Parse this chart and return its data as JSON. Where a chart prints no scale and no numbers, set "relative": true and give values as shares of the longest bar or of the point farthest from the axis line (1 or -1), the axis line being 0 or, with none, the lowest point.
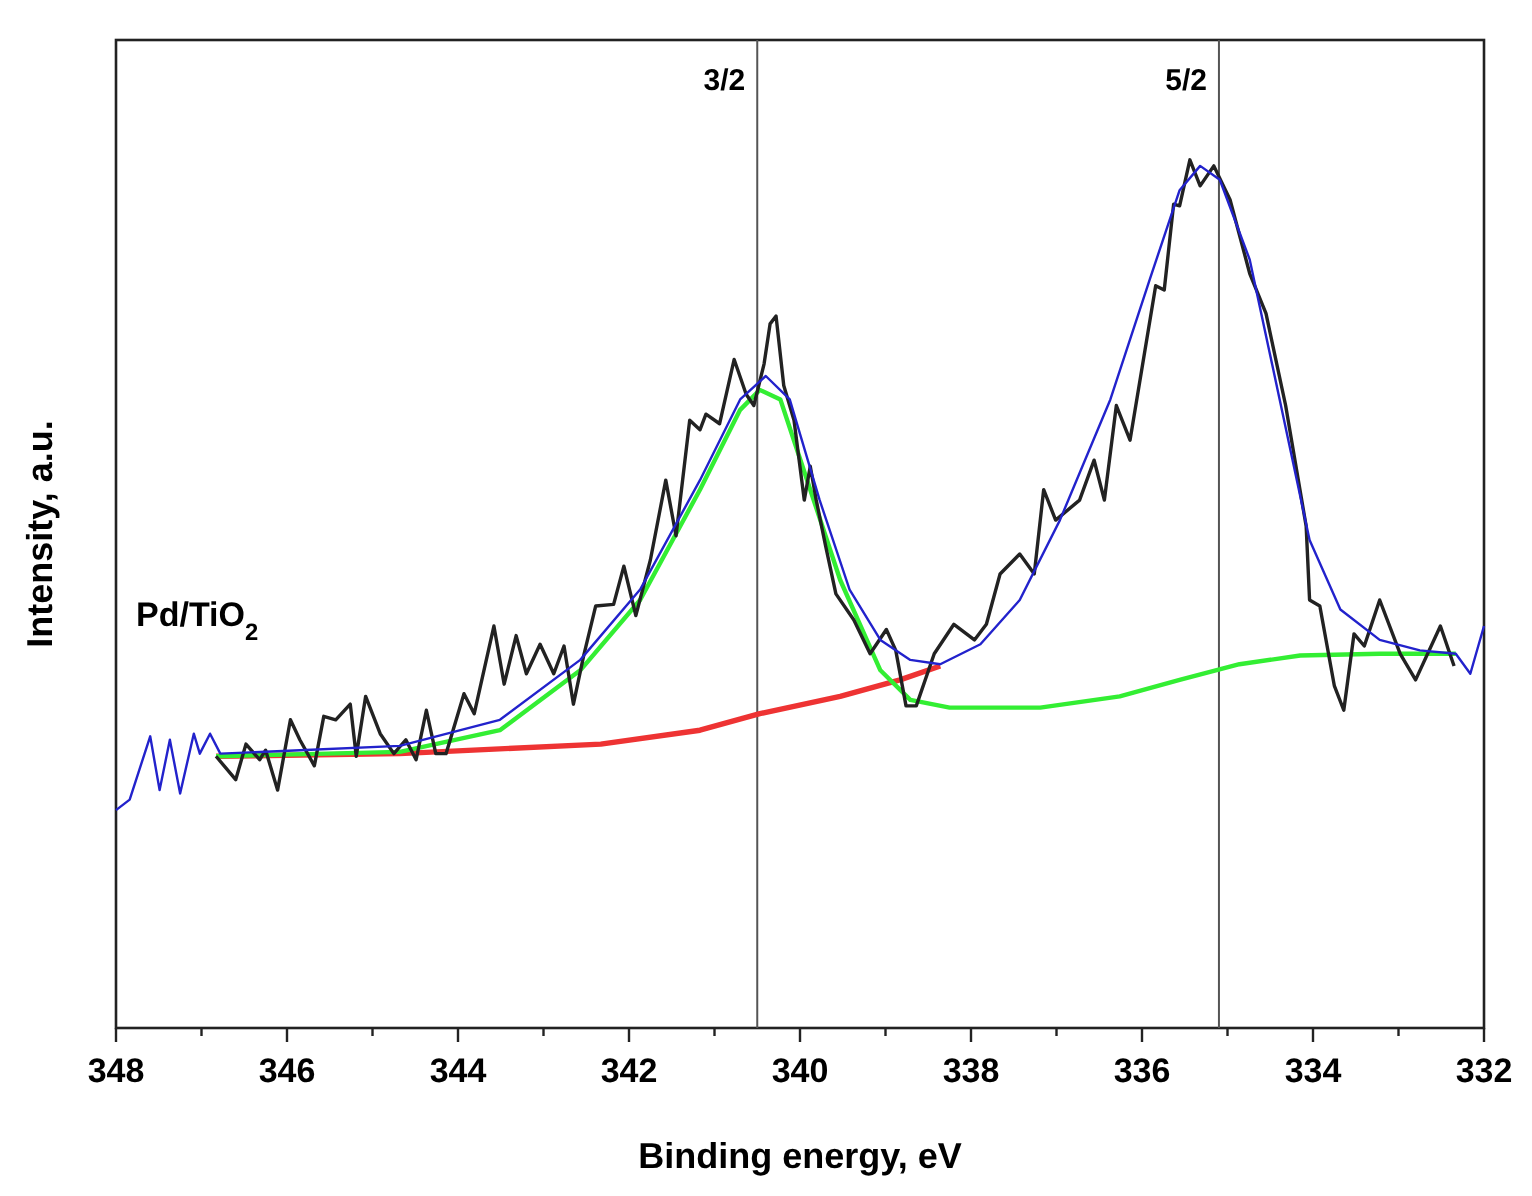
{
  "chart_data": {
    "type": "line",
    "xlabel": "Binding energy, eV",
    "ylabel": "Intensity, a.u.",
    "annotations": [
      "Pd/TiO$_{2}$",
      {
        "text": "3/2",
        "x": 340.5,
        "y": 1.08
      },
      {
        "text": "5/2",
        "x": 335.1,
        "y": 1.08
      }
    ],
    "relative": true,
    "xlim": [
      348,
      332
    ],
    "xticks": [
      348,
      {
        "value": 347,
        "label": null
      },
      346,
      {
        "value": 345,
        "label": null
      },
      344,
      {
        "value": 343,
        "label": null
      },
      342,
      {
        "value": 341,
        "label": null
      },
      340,
      {
        "value": 339,
        "label": null
      },
      338,
      {
        "value": 337,
        "label": null
      },
      336,
      {
        "value": 335,
        "label": null
      },
      334,
      {
        "value": 333,
        "label": null
      },
      332
    ],
    "ref_lines": [
      {
        "axis": "x",
        "value": 340.5,
        "color": "#555555"
      },
      {
        "axis": "x",
        "value": 335.1,
        "color": "#555555"
      }
    ],
    "series": [
      {
        "color": "#ee3333",
        "x": [
          346.83,
          344.68,
          342.33,
          341.17,
          340.47,
          339.53,
          338.83,
          338.36
        ],
        "values": [
          0.313,
          0.316,
          0.327,
          0.343,
          0.362,
          0.382,
          0.401,
          0.417
        ]
      },
      {
        "color": "#33ee33",
        "x": [
          346.83,
          344.68,
          343.51,
          342.57,
          341.87,
          341.17,
          340.7,
          340.47,
          340.23,
          339.88,
          339.53,
          339.06,
          338.71,
          338.25,
          337.19,
          336.26,
          335.56,
          334.86,
          334.15,
          333.22,
          332.33
        ],
        "values": [
          0.313,
          0.318,
          0.343,
          0.412,
          0.493,
          0.62,
          0.712,
          0.735,
          0.724,
          0.62,
          0.516,
          0.412,
          0.378,
          0.369,
          0.369,
          0.382,
          0.401,
          0.419,
          0.429,
          0.431,
          0.431
        ]
      },
      {
        "color": "#222222",
        "x": [
          346.83,
          346.6,
          346.48,
          346.32,
          346.25,
          346.11,
          345.96,
          345.85,
          345.68,
          345.57,
          345.43,
          345.26,
          345.19,
          345.08,
          344.91,
          344.75,
          344.61,
          344.49,
          344.37,
          344.26,
          344.14,
          343.93,
          343.81,
          343.58,
          343.46,
          343.32,
          343.2,
          343.04,
          342.88,
          342.76,
          342.65,
          342.53,
          342.39,
          342.18,
          342.06,
          341.92,
          341.75,
          341.57,
          341.45,
          341.29,
          341.17,
          341.1,
          340.94,
          340.77,
          340.63,
          340.54,
          340.42,
          340.35,
          340.28,
          340.19,
          340.07,
          339.95,
          339.88,
          339.81,
          339.7,
          339.58,
          339.37,
          339.18,
          338.99,
          338.88,
          338.76,
          338.64,
          338.43,
          338.2,
          337.96,
          337.82,
          337.66,
          337.43,
          337.26,
          337.15,
          337.01,
          336.73,
          336.56,
          336.44,
          336.3,
          336.14,
          335.84,
          335.74,
          335.63,
          335.56,
          335.44,
          335.32,
          335.16,
          334.97,
          334.74,
          334.55,
          334.32,
          334.08,
          334.04,
          333.92,
          333.75,
          333.64,
          333.52,
          333.4,
          333.22,
          332.98,
          332.8,
          332.51,
          332.35
        ],
        "values": [
          0.313,
          0.286,
          0.327,
          0.309,
          0.32,
          0.274,
          0.355,
          0.332,
          0.302,
          0.359,
          0.355,
          0.373,
          0.313,
          0.382,
          0.339,
          0.316,
          0.332,
          0.309,
          0.366,
          0.316,
          0.316,
          0.385,
          0.362,
          0.463,
          0.396,
          0.452,
          0.408,
          0.442,
          0.408,
          0.44,
          0.373,
          0.429,
          0.486,
          0.488,
          0.532,
          0.475,
          0.539,
          0.631,
          0.567,
          0.7,
          0.689,
          0.707,
          0.696,
          0.77,
          0.73,
          0.717,
          0.765,
          0.811,
          0.82,
          0.74,
          0.7,
          0.608,
          0.647,
          0.608,
          0.555,
          0.5,
          0.47,
          0.431,
          0.459,
          0.435,
          0.371,
          0.371,
          0.431,
          0.465,
          0.447,
          0.465,
          0.523,
          0.546,
          0.523,
          0.62,
          0.585,
          0.608,
          0.654,
          0.608,
          0.717,
          0.677,
          0.855,
          0.85,
          0.949,
          0.947,
          1.0,
          0.97,
          0.993,
          0.954,
          0.869,
          0.823,
          0.717,
          0.578,
          0.493,
          0.486,
          0.394,
          0.366,
          0.454,
          0.44,
          0.493,
          0.431,
          0.401,
          0.463,
          0.417
        ]
      },
      {
        "color": "#2222cc",
        "x": [
          348,
          347.84,
          347.6,
          347.49,
          347.37,
          347.25,
          347.09,
          347.02,
          346.9,
          346.78,
          345.85,
          344.68,
          343.51,
          342.57,
          341.87,
          341.17,
          340.7,
          340.4,
          340.12,
          339.77,
          339.42,
          339.06,
          338.71,
          338.36,
          337.89,
          337.43,
          336.96,
          336.37,
          335.91,
          335.56,
          335.32,
          335.09,
          334.74,
          334.39,
          334.04,
          333.68,
          333.22,
          332.75,
          332.33,
          332.16,
          332
        ],
        "values": [
          0.251,
          0.263,
          0.336,
          0.274,
          0.332,
          0.27,
          0.339,
          0.316,
          0.339,
          0.316,
          0.32,
          0.325,
          0.355,
          0.424,
          0.505,
          0.631,
          0.724,
          0.751,
          0.724,
          0.608,
          0.505,
          0.447,
          0.424,
          0.419,
          0.442,
          0.493,
          0.585,
          0.724,
          0.862,
          0.965,
          0.993,
          0.977,
          0.885,
          0.724,
          0.562,
          0.482,
          0.447,
          0.435,
          0.431,
          0.408,
          0.463
        ]
      }
    ]
  }
}
